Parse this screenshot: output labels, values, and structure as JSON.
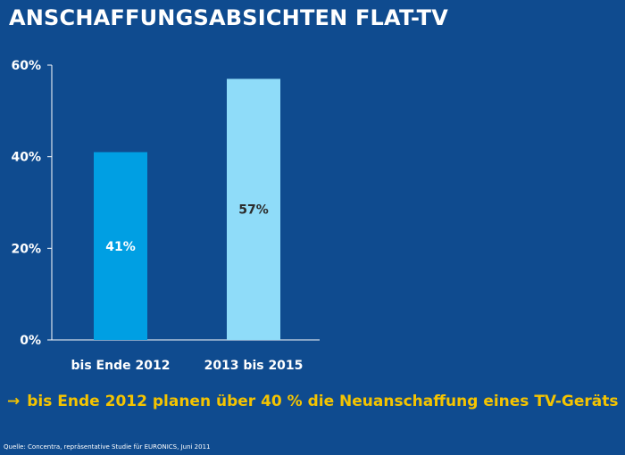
{
  "header": {
    "title": "ANSCHAFFUNGSABSICHTEN FLAT-TV"
  },
  "chart_data": {
    "type": "bar",
    "categories": [
      "bis Ende 2012",
      "2013 bis 2015"
    ],
    "values": [
      41,
      57
    ],
    "data_labels": [
      "41%",
      "57%"
    ],
    "y_ticks": [
      0,
      20,
      40,
      60
    ],
    "y_tick_labels": [
      "0%",
      "20%",
      "40%",
      "60%"
    ],
    "ylim": [
      0,
      60
    ],
    "grid": false,
    "bar_colors": [
      "#009fe3",
      "#8fdcf9"
    ],
    "data_label_colors": [
      "#ffffff",
      "#2b2b2b"
    ]
  },
  "takeaway": {
    "arrow": "→",
    "text": "bis Ende 2012 planen über 40 % die Neuanschaffung eines TV-Geräts"
  },
  "footer": {
    "source": "Quelle: Concentra, repräsentative Studie für EURONICS, Juni 2011"
  },
  "colors": {
    "background": "#0f4b8f",
    "accent": "#f5c400"
  }
}
